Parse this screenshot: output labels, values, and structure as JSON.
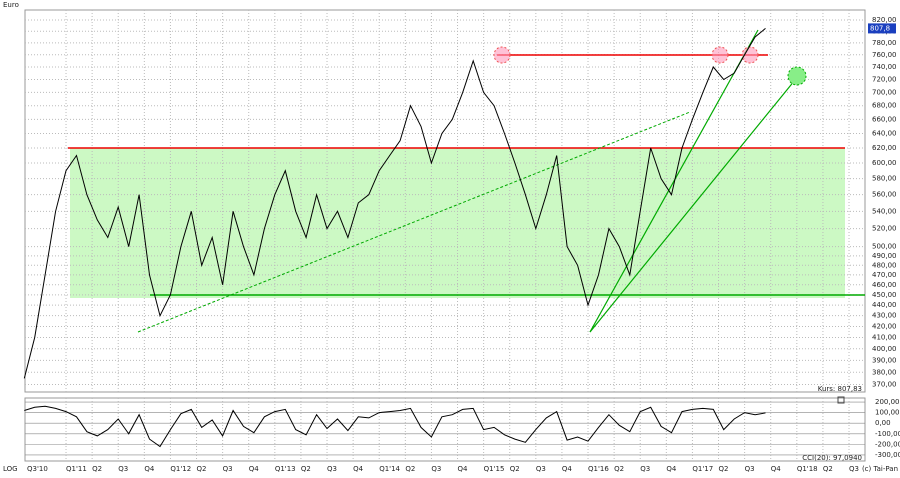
{
  "chart_data": {
    "type": "line",
    "y_label": "Euro",
    "scale_label": "LOG",
    "copyright": "(c) Tai-Pan",
    "last_price_tag": "807,8",
    "price_caption": "Kurs: 807,83",
    "indicator_caption": "CCI(20): 97,0940",
    "log_scale": true,
    "grid": true,
    "x": [
      2010.6,
      2010.7,
      2010.8,
      2010.9,
      2011.0,
      2011.1,
      2011.2,
      2011.3,
      2011.4,
      2011.5,
      2011.6,
      2011.7,
      2011.8,
      2011.9,
      2012.0,
      2012.1,
      2012.2,
      2012.3,
      2012.4,
      2012.5,
      2012.6,
      2012.7,
      2012.8,
      2012.9,
      2013.0,
      2013.1,
      2013.2,
      2013.3,
      2013.4,
      2013.5,
      2013.6,
      2013.7,
      2013.8,
      2013.9,
      2014.0,
      2014.1,
      2014.2,
      2014.3,
      2014.4,
      2014.5,
      2014.6,
      2014.7,
      2014.8,
      2014.9,
      2015.0,
      2015.1,
      2015.2,
      2015.3,
      2015.4,
      2015.5,
      2015.6,
      2015.7,
      2015.8,
      2015.9,
      2016.0,
      2016.1,
      2016.2,
      2016.3,
      2016.4,
      2016.5,
      2016.6,
      2016.7,
      2016.8,
      2016.9,
      2017.0,
      2017.1,
      2017.2,
      2017.3,
      2017.4,
      2017.5,
      2017.6,
      2017.7
    ],
    "series": [
      {
        "color": "#000000",
        "values": [
          375,
          410,
          470,
          540,
          590,
          610,
          560,
          530,
          510,
          545,
          500,
          560,
          470,
          430,
          450,
          500,
          540,
          480,
          510,
          460,
          540,
          500,
          470,
          520,
          560,
          590,
          540,
          510,
          560,
          520,
          540,
          510,
          550,
          560,
          590,
          610,
          630,
          680,
          650,
          600,
          640,
          660,
          700,
          750,
          700,
          680,
          640,
          600,
          560,
          520,
          560,
          610,
          500,
          480,
          440,
          470,
          520,
          500,
          470,
          540,
          620,
          580,
          560,
          620,
          660,
          700,
          740,
          720,
          730,
          760,
          790,
          805
        ]
      },
      {
        "color": "#000000",
        "axis": "y2",
        "values": [
          120,
          150,
          160,
          140,
          110,
          60,
          -80,
          -120,
          -60,
          40,
          -100,
          80,
          -150,
          -220,
          -60,
          90,
          130,
          -40,
          30,
          -120,
          120,
          -30,
          -90,
          60,
          110,
          130,
          -60,
          -110,
          80,
          -50,
          40,
          -70,
          60,
          50,
          100,
          110,
          120,
          140,
          -40,
          -130,
          60,
          80,
          130,
          140,
          -60,
          -40,
          -110,
          -150,
          -180,
          -60,
          50,
          110,
          -160,
          -130,
          -170,
          -40,
          80,
          -20,
          -80,
          110,
          150,
          -30,
          -90,
          110,
          130,
          140,
          130,
          -60,
          40,
          100,
          80,
          97
        ]
      }
    ],
    "xlim": [
      2010.607,
      2018.653
    ],
    "xticks": [
      {
        "value": 2010.5,
        "label": "Q3'10"
      },
      {
        "value": 2011.0,
        "label": "Q1'11"
      },
      {
        "value": 2011.25,
        "label": "Q2"
      },
      {
        "value": 2011.5,
        "label": "Q3"
      },
      {
        "value": 2011.75,
        "label": "Q4"
      },
      {
        "value": 2012.0,
        "label": "Q1'12"
      },
      {
        "value": 2012.25,
        "label": "Q2"
      },
      {
        "value": 2012.5,
        "label": "Q3"
      },
      {
        "value": 2012.75,
        "label": "Q4"
      },
      {
        "value": 2013.0,
        "label": "Q1'13"
      },
      {
        "value": 2013.25,
        "label": "Q2"
      },
      {
        "value": 2013.5,
        "label": "Q3"
      },
      {
        "value": 2013.75,
        "label": "Q4"
      },
      {
        "value": 2014.0,
        "label": "Q1'14"
      },
      {
        "value": 2014.25,
        "label": "Q2"
      },
      {
        "value": 2014.5,
        "label": "Q3"
      },
      {
        "value": 2014.75,
        "label": "Q4"
      },
      {
        "value": 2015.0,
        "label": "Q1'15"
      },
      {
        "value": 2015.25,
        "label": "Q2"
      },
      {
        "value": 2015.5,
        "label": "Q3"
      },
      {
        "value": 2015.75,
        "label": "Q4"
      },
      {
        "value": 2016.0,
        "label": "Q1'16"
      },
      {
        "value": 2016.25,
        "label": "Q2"
      },
      {
        "value": 2016.5,
        "label": "Q3"
      },
      {
        "value": 2016.75,
        "label": "Q4"
      },
      {
        "value": 2017.0,
        "label": "Q1'17"
      },
      {
        "value": 2017.25,
        "label": "Q2"
      },
      {
        "value": 2017.5,
        "label": "Q3"
      },
      {
        "value": 2017.75,
        "label": "Q4"
      },
      {
        "value": 2018.0,
        "label": "Q1'18"
      },
      {
        "value": 2018.25,
        "label": "Q2"
      },
      {
        "value": 2018.5,
        "label": "Q3"
      }
    ],
    "ylim": [
      364,
      838
    ],
    "yticks": [
      {
        "value": 370,
        "label": "370,00"
      },
      {
        "value": 380,
        "label": "380,00"
      },
      {
        "value": 390,
        "label": "390,00"
      },
      {
        "value": 400,
        "label": "400,00"
      },
      {
        "value": 410,
        "label": "410,00"
      },
      {
        "value": 420,
        "label": "420,00"
      },
      {
        "value": 430,
        "label": "430,00"
      },
      {
        "value": 440,
        "label": "440,00"
      },
      {
        "value": 450,
        "label": "450,00"
      },
      {
        "value": 460,
        "label": "460,00"
      },
      {
        "value": 470,
        "label": "470,00"
      },
      {
        "value": 480,
        "label": "480,00"
      },
      {
        "value": 490,
        "label": "490,00"
      },
      {
        "value": 500,
        "label": "500,00"
      },
      {
        "value": 520,
        "label": "520,00"
      },
      {
        "value": 540,
        "label": "540,00"
      },
      {
        "value": 560,
        "label": "560,00"
      },
      {
        "value": 580,
        "label": "580,00"
      },
      {
        "value": 600,
        "label": "600,00"
      },
      {
        "value": 620,
        "label": "620,00"
      },
      {
        "value": 640,
        "label": "640,00"
      },
      {
        "value": 660,
        "label": "660,00"
      },
      {
        "value": 680,
        "label": "680,00"
      },
      {
        "value": 700,
        "label": "700,00"
      },
      {
        "value": 720,
        "label": "720,00"
      },
      {
        "value": 740,
        "label": "740,00"
      },
      {
        "value": 760,
        "label": "760,00"
      },
      {
        "value": 780,
        "label": "780,00"
      },
      {
        "value": 800,
        "label": "800,00"
      },
      {
        "value": 820,
        "label": "820,00"
      }
    ],
    "y2lim": [
      -357,
      238
    ],
    "y2ticks": [
      {
        "value": 200,
        "label": "200,00"
      },
      {
        "value": 100,
        "label": "100,00"
      },
      {
        "value": 0,
        "label": "0,00"
      },
      {
        "value": -100,
        "label": "-100,00"
      },
      {
        "value": -200,
        "label": "-200,00"
      },
      {
        "value": -300,
        "label": "-300,00"
      }
    ]
  }
}
